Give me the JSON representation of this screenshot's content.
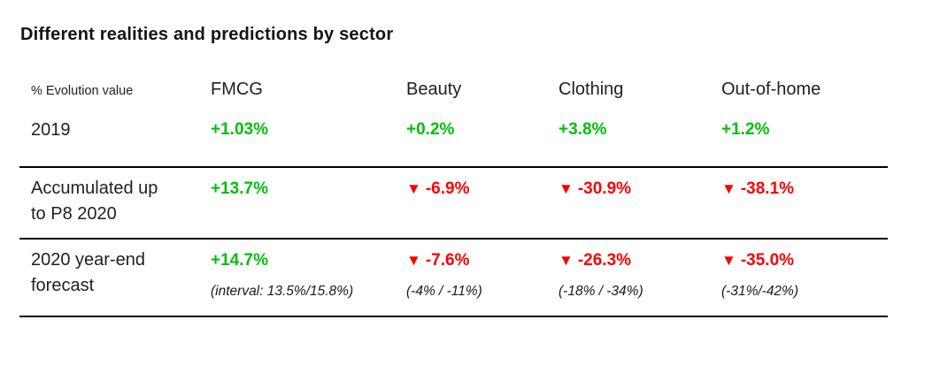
{
  "title": "Different realities and predictions by sector",
  "colors": {
    "positive": "#00bf0a",
    "negative": "#fb0000",
    "text": "#1f1f1f",
    "line": "#000000",
    "background": "#ffffff"
  },
  "table": {
    "corner_label": "% Evolution value",
    "headers": [
      "FMCG",
      "Beauty",
      "Clothing",
      "Out-of-home"
    ],
    "rows": [
      {
        "label_line1": "2019",
        "label_line2": "",
        "cells": [
          {
            "arrow": "",
            "value": "+1.03%",
            "interval": ""
          },
          {
            "arrow": "",
            "value": "+0.2%",
            "interval": ""
          },
          {
            "arrow": "",
            "value": "+3.8%",
            "interval": ""
          },
          {
            "arrow": "",
            "value": "+1.2%",
            "interval": ""
          }
        ]
      },
      {
        "label_line1": "Accumulated up",
        "label_line2": "to P8 2020",
        "cells": [
          {
            "arrow": "",
            "value": "+13.7%",
            "interval": ""
          },
          {
            "arrow": "▼",
            "value": "-6.9%",
            "interval": ""
          },
          {
            "arrow": "▼",
            "value": "-30.9%",
            "interval": ""
          },
          {
            "arrow": "▼",
            "value": "-38.1%",
            "interval": ""
          }
        ]
      },
      {
        "label_line1": "2020 year-end",
        "label_line2": "forecast",
        "cells": [
          {
            "arrow": "",
            "value": "+14.7%",
            "interval": "(interval: 13.5%/15.8%)"
          },
          {
            "arrow": "▼",
            "value": "-7.6%",
            "interval": "(-4% / -11%)"
          },
          {
            "arrow": "▼",
            "value": "-26.3%",
            "interval": "(-18% / -34%)"
          },
          {
            "arrow": "▼",
            "value": "-35.0%",
            "interval": "(-31%/-42%)"
          }
        ]
      }
    ]
  },
  "chart_data": {
    "type": "table",
    "title": "Different realities and predictions by sector",
    "unit": "% evolution value",
    "columns": [
      "FMCG",
      "Beauty",
      "Clothing",
      "Out-of-home"
    ],
    "rows": [
      {
        "label": "2019",
        "values": [
          1.03,
          0.2,
          3.8,
          1.2
        ]
      },
      {
        "label": "Accumulated up to P8 2020",
        "values": [
          13.7,
          -6.9,
          -30.9,
          -38.1
        ]
      },
      {
        "label": "2020 year-end forecast",
        "values": [
          14.7,
          -7.6,
          -26.3,
          -35.0
        ],
        "intervals": [
          "13.5%/15.8%",
          "-4% / -11%",
          "-18% / -34%",
          "-31%/-42%"
        ]
      }
    ]
  }
}
